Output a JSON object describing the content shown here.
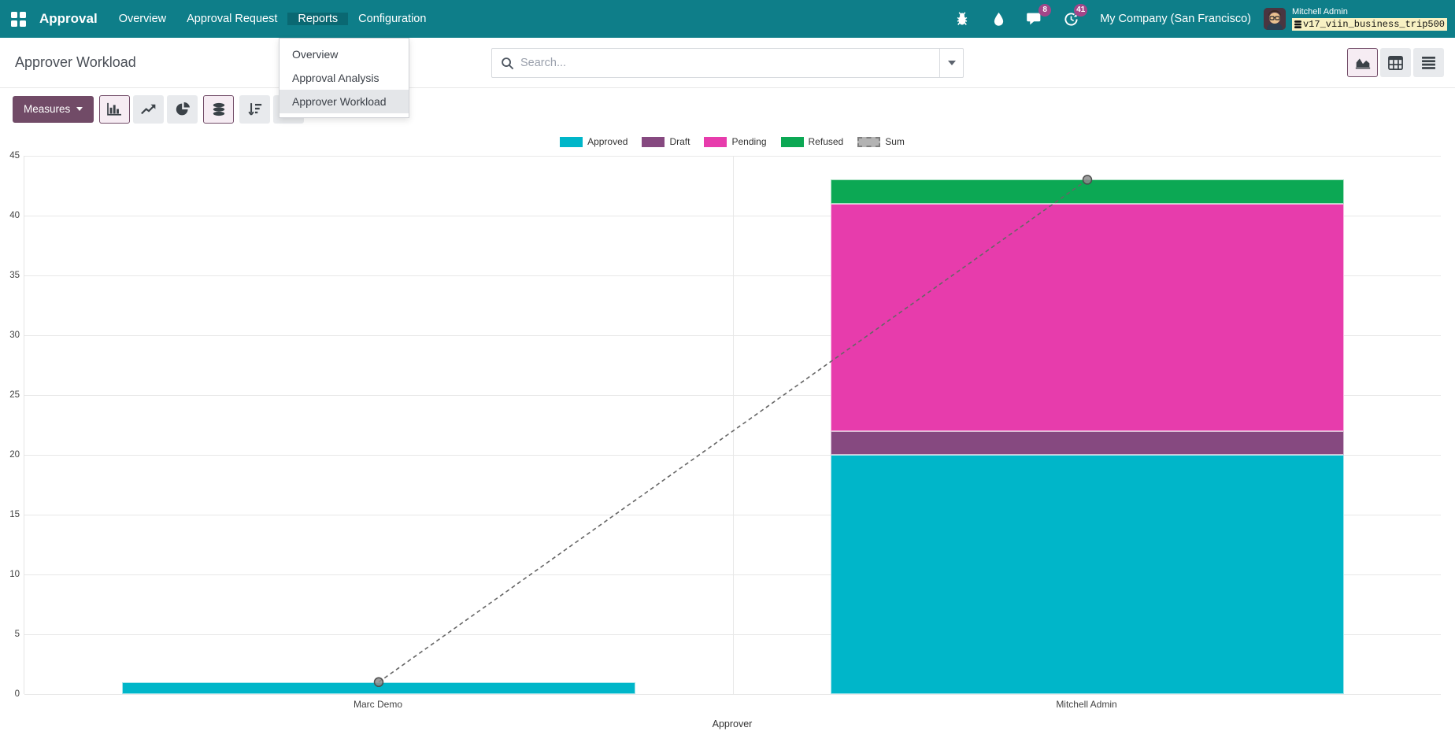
{
  "navbar": {
    "app_name": "Approval",
    "menu_items": [
      {
        "label": "Overview",
        "active": false
      },
      {
        "label": "Approval Request",
        "active": false
      },
      {
        "label": "Reports",
        "active": true
      },
      {
        "label": "Configuration",
        "active": false
      }
    ],
    "systray": {
      "message_badge": "8",
      "activity_badge": "41",
      "company": "My Company (San Francisco)",
      "user_name": "Mitchell Admin",
      "db_name": "v17_viin_business_trip500"
    }
  },
  "control_panel": {
    "breadcrumb": "Approver Workload",
    "search_placeholder": "Search...",
    "measures_label": "Measures"
  },
  "reports_menu": {
    "items": [
      "Overview",
      "Approval Analysis",
      "Approver Workload"
    ],
    "focused_item": "Approver Workload"
  },
  "chart_data": {
    "type": "bar",
    "stacked": true,
    "categories": [
      "Marc Demo",
      "Mitchell Admin"
    ],
    "series": [
      {
        "name": "Approved",
        "color": "#00b6c9",
        "values": [
          1,
          20
        ]
      },
      {
        "name": "Draft",
        "color": "#864980",
        "values": [
          0,
          2
        ]
      },
      {
        "name": "Pending",
        "color": "#e73cac",
        "values": [
          0,
          19
        ]
      },
      {
        "name": "Refused",
        "color": "#0ca854",
        "values": [
          0,
          2
        ]
      }
    ],
    "line_series": {
      "name": "Sum",
      "color": "#8c8c8c",
      "dashed": true,
      "values": [
        1,
        43
      ]
    },
    "xlabel": "Approver",
    "ylim": [
      0,
      45
    ],
    "ytick_step": 5,
    "legend_position": "top",
    "grid": true
  }
}
